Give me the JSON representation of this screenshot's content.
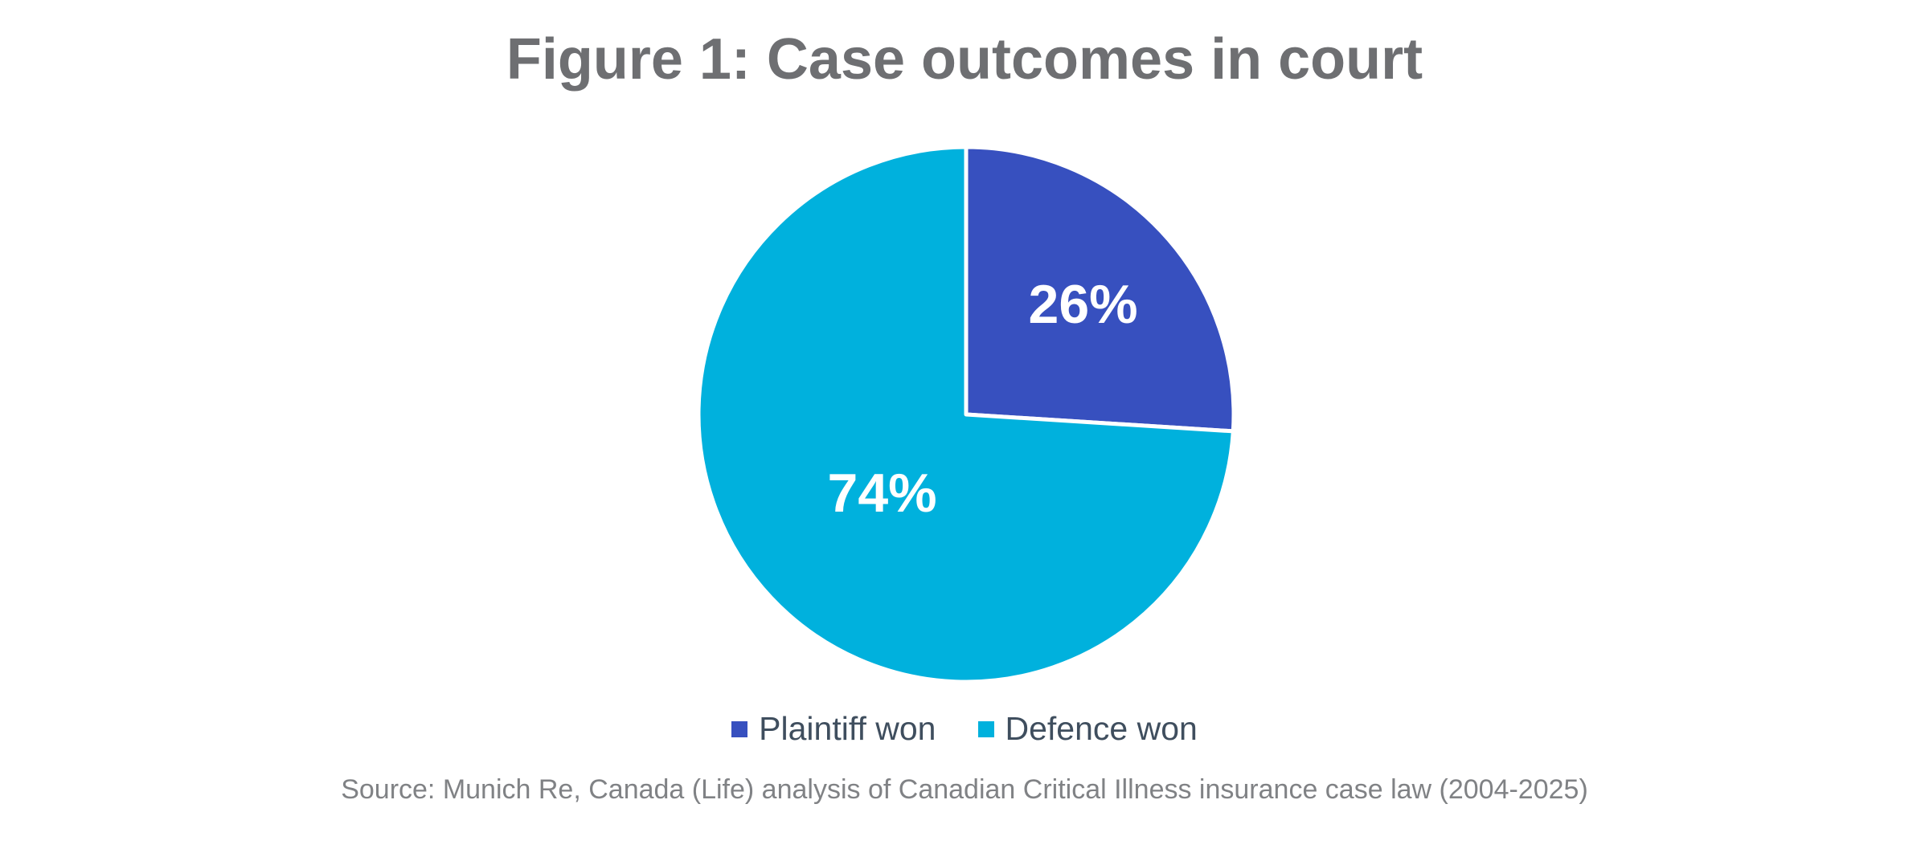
{
  "page": {
    "background_color": "#ffffff"
  },
  "header": {
    "title": "Figure 1: Case outcomes in court",
    "title_color": "#6e6f72"
  },
  "chart_data": {
    "type": "pie",
    "title": "Figure 1: Case outcomes in court",
    "labels": [
      "Plaintiff won",
      "Defence won"
    ],
    "values": [
      26,
      74
    ],
    "slice_labels": [
      "26%",
      "74%"
    ],
    "colors": [
      "#3750bf",
      "#00b1dd"
    ],
    "slice_label_color": "#ffffff",
    "divider_color": "#ffffff",
    "start_angle_deg": 0,
    "direction": "clockwise",
    "legend_position": "bottom",
    "grid": false
  },
  "legend": {
    "items": [
      {
        "label": "Plaintiff won",
        "color": "#3750bf"
      },
      {
        "label": "Defence won",
        "color": "#00b1dd"
      }
    ]
  },
  "source": {
    "text": "Source: Munich Re, Canada (Life) analysis of Canadian Critical Illness insurance case law (2004-2025)"
  }
}
